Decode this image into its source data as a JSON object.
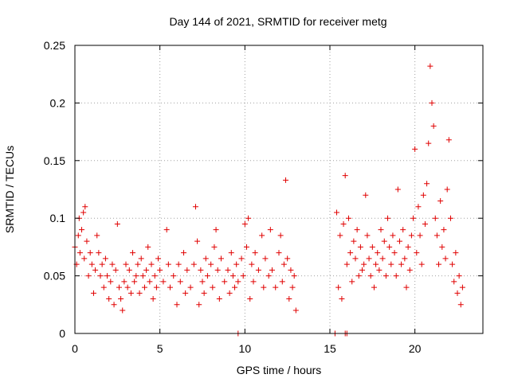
{
  "chart_data": {
    "type": "scatter",
    "title": "Day 144 of 2021, SRMTID for receiver metg",
    "xlabel": "GPS time / hours",
    "ylabel": "SRMTID / TECUs",
    "xlim": [
      0,
      24
    ],
    "ylim": [
      0,
      0.25
    ],
    "xticks": [
      0,
      5,
      10,
      15,
      20
    ],
    "xtick_labels": [
      "0",
      "5",
      "10",
      "15",
      "20"
    ],
    "yticks": [
      0,
      0.05,
      0.1,
      0.15,
      0.2,
      0.25
    ],
    "ytick_labels": [
      "0",
      "0.05",
      "0.1",
      "0.15",
      "0.2",
      "0.25"
    ],
    "grid": true,
    "marker": "plus",
    "series": [
      {
        "name": "SRMTID",
        "color": "#e00000",
        "points": [
          [
            0.0,
            0.075
          ],
          [
            0.1,
            0.06
          ],
          [
            0.2,
            0.085
          ],
          [
            0.25,
            0.1
          ],
          [
            0.3,
            0.07
          ],
          [
            0.4,
            0.09
          ],
          [
            0.5,
            0.105
          ],
          [
            0.55,
            0.065
          ],
          [
            0.6,
            0.11
          ],
          [
            0.7,
            0.08
          ],
          [
            0.8,
            0.05
          ],
          [
            0.9,
            0.07
          ],
          [
            1.0,
            0.06
          ],
          [
            1.1,
            0.035
          ],
          [
            1.2,
            0.055
          ],
          [
            1.3,
            0.085
          ],
          [
            1.4,
            0.07
          ],
          [
            1.5,
            0.05
          ],
          [
            1.6,
            0.06
          ],
          [
            1.7,
            0.04
          ],
          [
            1.8,
            0.065
          ],
          [
            1.9,
            0.05
          ],
          [
            2.0,
            0.03
          ],
          [
            2.1,
            0.045
          ],
          [
            2.2,
            0.06
          ],
          [
            2.3,
            0.025
          ],
          [
            2.4,
            0.055
          ],
          [
            2.5,
            0.095
          ],
          [
            2.6,
            0.04
          ],
          [
            2.7,
            0.03
          ],
          [
            2.8,
            0.02
          ],
          [
            2.9,
            0.045
          ],
          [
            3.0,
            0.06
          ],
          [
            3.1,
            0.04
          ],
          [
            3.2,
            0.055
          ],
          [
            3.3,
            0.035
          ],
          [
            3.4,
            0.07
          ],
          [
            3.5,
            0.045
          ],
          [
            3.6,
            0.05
          ],
          [
            3.7,
            0.06
          ],
          [
            3.8,
            0.035
          ],
          [
            3.9,
            0.065
          ],
          [
            4.0,
            0.05
          ],
          [
            4.1,
            0.04
          ],
          [
            4.2,
            0.055
          ],
          [
            4.3,
            0.075
          ],
          [
            4.4,
            0.045
          ],
          [
            4.5,
            0.06
          ],
          [
            4.6,
            0.03
          ],
          [
            4.7,
            0.05
          ],
          [
            4.8,
            0.04
          ],
          [
            4.9,
            0.065
          ],
          [
            5.0,
            0.055
          ],
          [
            5.2,
            0.045
          ],
          [
            5.4,
            0.09
          ],
          [
            5.5,
            0.06
          ],
          [
            5.6,
            0.04
          ],
          [
            5.8,
            0.05
          ],
          [
            6.0,
            0.025
          ],
          [
            6.1,
            0.06
          ],
          [
            6.2,
            0.045
          ],
          [
            6.4,
            0.07
          ],
          [
            6.5,
            0.035
          ],
          [
            6.6,
            0.055
          ],
          [
            6.8,
            0.04
          ],
          [
            7.0,
            0.06
          ],
          [
            7.1,
            0.11
          ],
          [
            7.2,
            0.08
          ],
          [
            7.3,
            0.025
          ],
          [
            7.4,
            0.055
          ],
          [
            7.5,
            0.045
          ],
          [
            7.6,
            0.035
          ],
          [
            7.7,
            0.065
          ],
          [
            7.8,
            0.05
          ],
          [
            8.0,
            0.06
          ],
          [
            8.1,
            0.04
          ],
          [
            8.2,
            0.075
          ],
          [
            8.3,
            0.09
          ],
          [
            8.4,
            0.055
          ],
          [
            8.5,
            0.03
          ],
          [
            8.6,
            0.065
          ],
          [
            8.8,
            0.045
          ],
          [
            9.0,
            0.055
          ],
          [
            9.1,
            0.035
          ],
          [
            9.2,
            0.07
          ],
          [
            9.3,
            0.05
          ],
          [
            9.4,
            0.04
          ],
          [
            9.5,
            0.06
          ],
          [
            9.6,
            0.045
          ],
          [
            9.8,
            0.065
          ],
          [
            9.9,
            0.05
          ],
          [
            10.0,
            0.095
          ],
          [
            10.1,
            0.075
          ],
          [
            10.2,
            0.1
          ],
          [
            10.3,
            0.03
          ],
          [
            10.4,
            0.06
          ],
          [
            10.5,
            0.045
          ],
          [
            10.6,
            0.07
          ],
          [
            10.8,
            0.055
          ],
          [
            11.0,
            0.085
          ],
          [
            11.1,
            0.04
          ],
          [
            11.2,
            0.065
          ],
          [
            11.4,
            0.05
          ],
          [
            11.5,
            0.09
          ],
          [
            11.6,
            0.055
          ],
          [
            11.8,
            0.04
          ],
          [
            12.0,
            0.07
          ],
          [
            12.1,
            0.085
          ],
          [
            12.2,
            0.045
          ],
          [
            12.3,
            0.06
          ],
          [
            12.4,
            0.133
          ],
          [
            12.5,
            0.065
          ],
          [
            12.6,
            0.03
          ],
          [
            12.7,
            0.055
          ],
          [
            12.8,
            0.04
          ],
          [
            12.9,
            0.05
          ],
          [
            13.0,
            0.02
          ],
          [
            15.4,
            0.105
          ],
          [
            15.5,
            0.04
          ],
          [
            15.6,
            0.085
          ],
          [
            15.7,
            0.03
          ],
          [
            15.8,
            0.095
          ],
          [
            15.9,
            0.137
          ],
          [
            16.0,
            0.06
          ],
          [
            16.1,
            0.1
          ],
          [
            16.2,
            0.07
          ],
          [
            16.3,
            0.045
          ],
          [
            16.4,
            0.08
          ],
          [
            16.5,
            0.065
          ],
          [
            16.6,
            0.09
          ],
          [
            16.7,
            0.05
          ],
          [
            16.8,
            0.075
          ],
          [
            16.9,
            0.055
          ],
          [
            17.0,
            0.06
          ],
          [
            17.1,
            0.12
          ],
          [
            17.2,
            0.085
          ],
          [
            17.3,
            0.065
          ],
          [
            17.4,
            0.05
          ],
          [
            17.5,
            0.075
          ],
          [
            17.6,
            0.04
          ],
          [
            17.7,
            0.06
          ],
          [
            17.8,
            0.07
          ],
          [
            17.9,
            0.055
          ],
          [
            18.0,
            0.09
          ],
          [
            18.1,
            0.065
          ],
          [
            18.2,
            0.08
          ],
          [
            18.3,
            0.05
          ],
          [
            18.4,
            0.1
          ],
          [
            18.5,
            0.075
          ],
          [
            18.6,
            0.06
          ],
          [
            18.7,
            0.085
          ],
          [
            18.8,
            0.07
          ],
          [
            18.9,
            0.05
          ],
          [
            19.0,
            0.125
          ],
          [
            19.1,
            0.08
          ],
          [
            19.2,
            0.06
          ],
          [
            19.3,
            0.09
          ],
          [
            19.4,
            0.065
          ],
          [
            19.5,
            0.04
          ],
          [
            19.6,
            0.075
          ],
          [
            19.7,
            0.055
          ],
          [
            19.8,
            0.085
          ],
          [
            19.9,
            0.1
          ],
          [
            20.0,
            0.16
          ],
          [
            20.1,
            0.07
          ],
          [
            20.2,
            0.11
          ],
          [
            20.3,
            0.085
          ],
          [
            20.4,
            0.06
          ],
          [
            20.5,
            0.12
          ],
          [
            20.6,
            0.095
          ],
          [
            20.7,
            0.13
          ],
          [
            20.8,
            0.165
          ],
          [
            20.9,
            0.232
          ],
          [
            21.0,
            0.2
          ],
          [
            21.1,
            0.18
          ],
          [
            21.2,
            0.1
          ],
          [
            21.3,
            0.085
          ],
          [
            21.4,
            0.06
          ],
          [
            21.5,
            0.115
          ],
          [
            21.6,
            0.075
          ],
          [
            21.7,
            0.09
          ],
          [
            21.8,
            0.065
          ],
          [
            21.9,
            0.125
          ],
          [
            22.0,
            0.168
          ],
          [
            22.1,
            0.1
          ],
          [
            22.2,
            0.06
          ],
          [
            22.3,
            0.045
          ],
          [
            22.4,
            0.07
          ],
          [
            22.5,
            0.035
          ],
          [
            22.6,
            0.05
          ],
          [
            22.7,
            0.025
          ],
          [
            22.8,
            0.04
          ]
        ]
      }
    ],
    "zero_points_x": [
      9.6,
      15.3,
      15.9,
      16.0
    ]
  }
}
